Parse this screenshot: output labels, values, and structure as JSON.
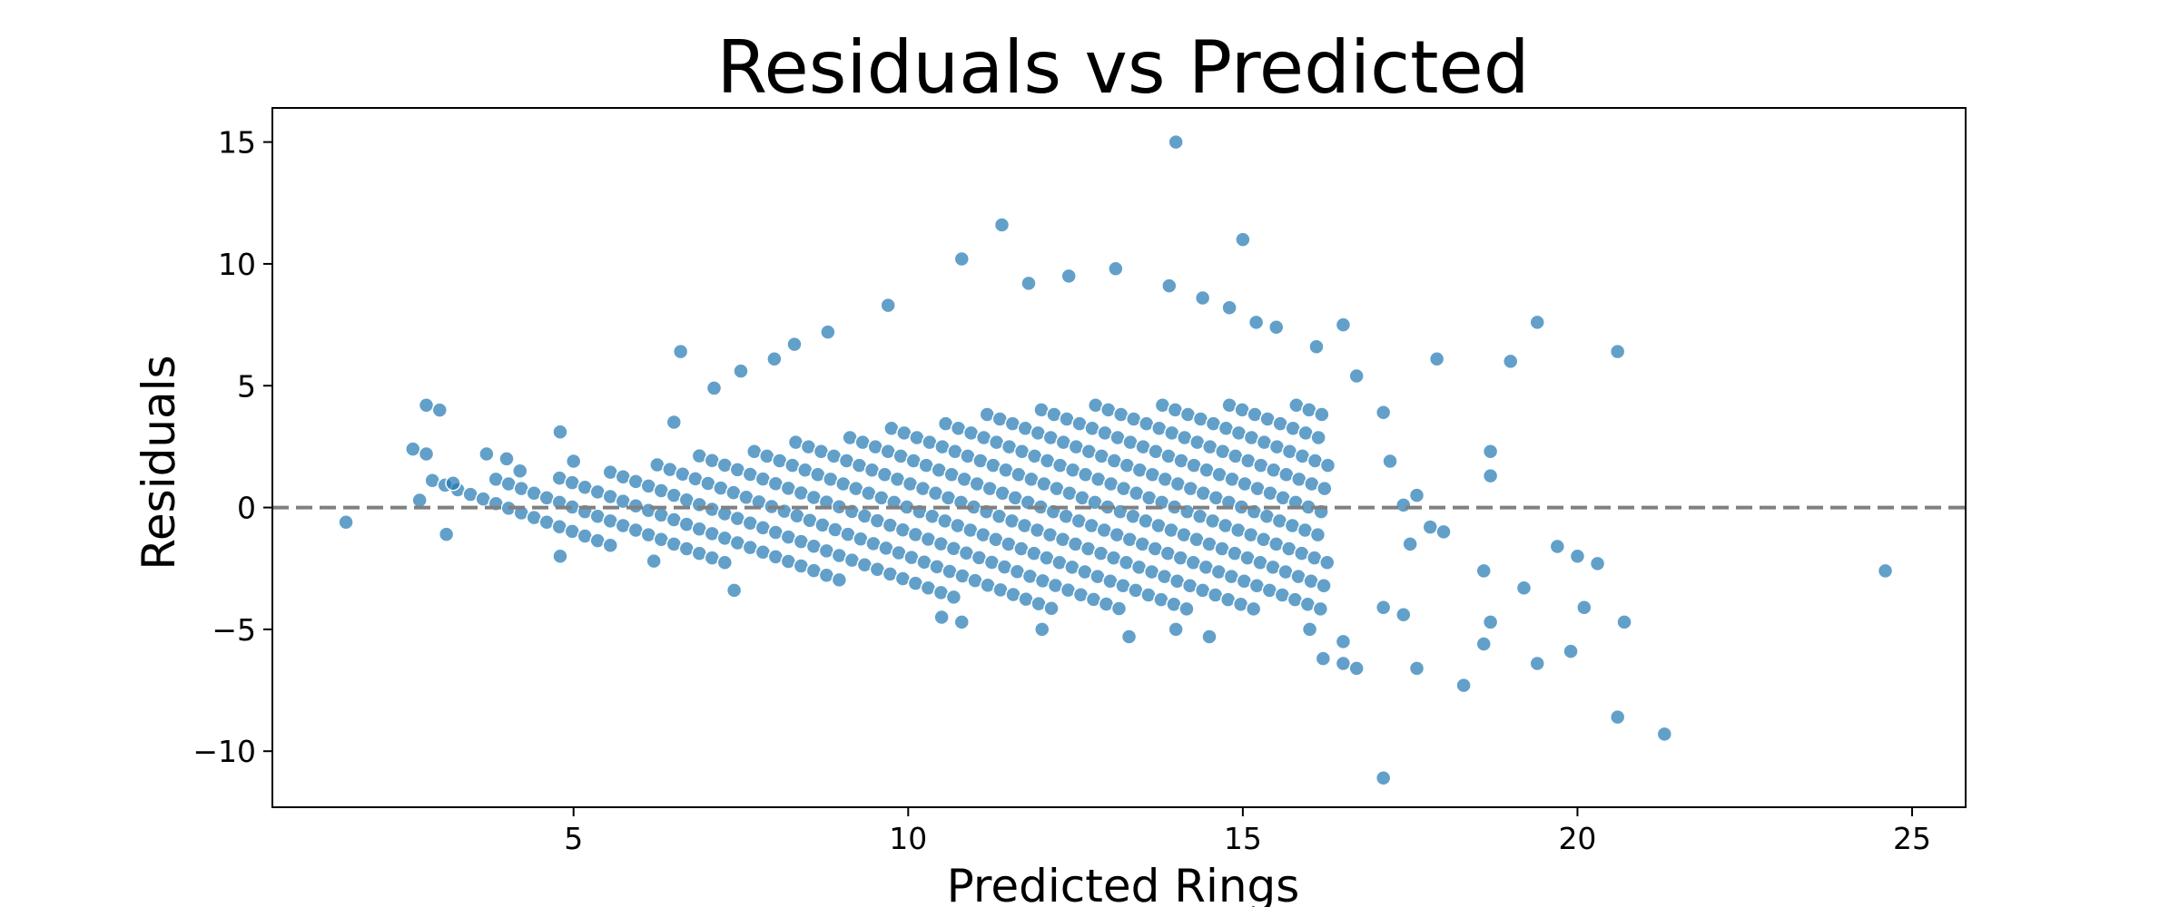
{
  "chart_data": {
    "type": "scatter",
    "title": "Residuals vs Predicted",
    "xlabel": "Predicted Rings",
    "ylabel": "Residuals",
    "xlim": [
      0.5,
      25.8
    ],
    "ylim": [
      -12.3,
      16.4
    ],
    "xticks": [
      5,
      10,
      15,
      20,
      25
    ],
    "yticks": [
      -10,
      -5,
      0,
      5,
      10,
      15
    ],
    "xtick_labels": [
      "5",
      "10",
      "15",
      "20",
      "25"
    ],
    "ytick_labels": [
      "−10",
      "−5",
      "0",
      "5",
      "10",
      "15"
    ],
    "reference_line": {
      "y": 0,
      "style": "dashed",
      "color": "#808080"
    },
    "marker_color": "#1f77b4",
    "grid": false,
    "outliers": [
      [
        1.6,
        -0.6
      ],
      [
        2.6,
        2.4
      ],
      [
        2.8,
        4.2
      ],
      [
        2.8,
        2.2
      ],
      [
        2.7,
        0.3
      ],
      [
        3.0,
        4.0
      ],
      [
        3.1,
        -1.1
      ],
      [
        3.2,
        1.0
      ],
      [
        3.7,
        2.2
      ],
      [
        4.0,
        2.0
      ],
      [
        4.8,
        3.1
      ],
      [
        4.2,
        1.5
      ],
      [
        5.0,
        1.9
      ],
      [
        6.5,
        3.5
      ],
      [
        6.6,
        6.4
      ],
      [
        7.1,
        4.9
      ],
      [
        7.5,
        5.6
      ],
      [
        8.0,
        6.1
      ],
      [
        8.3,
        6.7
      ],
      [
        8.8,
        7.2
      ],
      [
        9.7,
        8.3
      ],
      [
        10.8,
        10.2
      ],
      [
        11.4,
        11.6
      ],
      [
        11.8,
        9.2
      ],
      [
        12.4,
        9.5
      ],
      [
        13.1,
        9.8
      ],
      [
        13.9,
        9.1
      ],
      [
        14.0,
        15.0
      ],
      [
        14.4,
        8.6
      ],
      [
        14.8,
        8.2
      ],
      [
        15.0,
        11.0
      ],
      [
        15.2,
        7.6
      ],
      [
        15.5,
        7.4
      ],
      [
        16.1,
        6.6
      ],
      [
        16.5,
        7.5
      ],
      [
        16.7,
        5.4
      ],
      [
        17.1,
        3.9
      ],
      [
        17.2,
        1.9
      ],
      [
        17.4,
        0.1
      ],
      [
        17.6,
        0.5
      ],
      [
        17.9,
        6.1
      ],
      [
        18.7,
        2.3
      ],
      [
        18.7,
        1.3
      ],
      [
        19.0,
        6.0
      ],
      [
        19.4,
        7.6
      ],
      [
        20.6,
        6.4
      ],
      [
        16.0,
        -5.0
      ],
      [
        16.2,
        -6.2
      ],
      [
        16.5,
        -6.4
      ],
      [
        16.5,
        -5.5
      ],
      [
        16.7,
        -6.6
      ],
      [
        17.1,
        -4.1
      ],
      [
        17.4,
        -4.4
      ],
      [
        17.6,
        -6.6
      ],
      [
        17.5,
        -1.5
      ],
      [
        17.8,
        -0.8
      ],
      [
        18.0,
        -1.0
      ],
      [
        18.3,
        -7.3
      ],
      [
        18.6,
        -2.6
      ],
      [
        18.6,
        -5.6
      ],
      [
        18.7,
        -4.7
      ],
      [
        19.2,
        -3.3
      ],
      [
        19.4,
        -6.4
      ],
      [
        19.7,
        -1.6
      ],
      [
        20.0,
        -2.0
      ],
      [
        19.9,
        -5.9
      ],
      [
        20.1,
        -4.1
      ],
      [
        20.3,
        -2.3
      ],
      [
        20.6,
        -8.6
      ],
      [
        20.7,
        -4.7
      ],
      [
        21.3,
        -9.3
      ],
      [
        17.1,
        -11.1
      ],
      [
        24.6,
        -2.6
      ],
      [
        10.5,
        -4.5
      ],
      [
        10.8,
        -4.7
      ],
      [
        12.0,
        -5.0
      ],
      [
        13.3,
        -5.3
      ],
      [
        14.0,
        -5.0
      ],
      [
        14.5,
        -5.3
      ],
      [
        7.4,
        -3.4
      ],
      [
        6.2,
        -2.2
      ],
      [
        4.8,
        -2.0
      ]
    ]
  }
}
